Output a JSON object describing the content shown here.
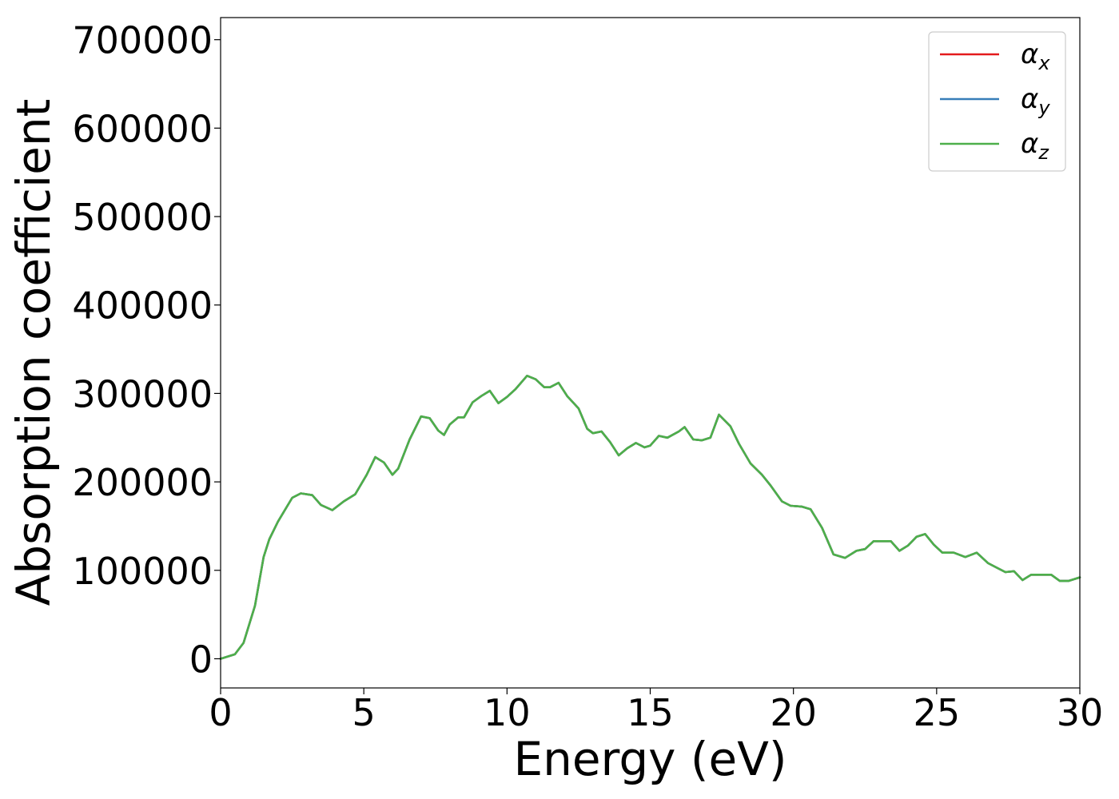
{
  "chart_data": {
    "type": "line",
    "title": "",
    "xlabel": "Energy (eV)",
    "ylabel": "Absorption coefficient",
    "xlim": [
      0,
      30
    ],
    "ylim": [
      -33000,
      725000
    ],
    "xticks": [
      0,
      5,
      10,
      15,
      20,
      25,
      30
    ],
    "xtick_labels": [
      "0",
      "5",
      "10",
      "15",
      "20",
      "25",
      "30"
    ],
    "yticks": [
      0,
      100000,
      200000,
      300000,
      400000,
      500000,
      600000,
      700000
    ],
    "ytick_labels": [
      "0",
      "100000",
      "200000",
      "300000",
      "400000",
      "500000",
      "600000",
      "700000"
    ],
    "grid": false,
    "legend_position": "top-right",
    "series": [
      {
        "name": "α",
        "subscript": "x",
        "color": "#e41a1c",
        "x": [
          0,
          0.5,
          0.8,
          1.2,
          1.5,
          1.7,
          2.0,
          2.5,
          2.8,
          3.2,
          3.5,
          3.9,
          4.3,
          4.7,
          5.1,
          5.4,
          5.7,
          6.0,
          6.2,
          6.6,
          7.0,
          7.3,
          7.6,
          7.8,
          8.0,
          8.3,
          8.5,
          8.8,
          9.1,
          9.4,
          9.7,
          10.0,
          10.3,
          10.7,
          11.0,
          11.3,
          11.5,
          11.8,
          12.1,
          12.5,
          12.8,
          13.0,
          13.3,
          13.6,
          13.9,
          14.2,
          14.5,
          14.8,
          15.0,
          15.3,
          15.6,
          16.0,
          16.2,
          16.5,
          16.8,
          17.1,
          17.4,
          17.8,
          18.1,
          18.5,
          18.9,
          19.2,
          19.6,
          19.9,
          20.3,
          20.6,
          21.0,
          21.4,
          21.8,
          22.2,
          22.5,
          22.8,
          23.1,
          23.4,
          23.7,
          24.0,
          24.3,
          24.6,
          24.9,
          25.2,
          25.6,
          26.0,
          26.4,
          26.8,
          27.1,
          27.4,
          27.7,
          28.0,
          28.3,
          28.7,
          29.0,
          29.3,
          29.6,
          30.0
        ],
        "y": [
          0,
          5000,
          18000,
          60000,
          115000,
          135000,
          155000,
          182000,
          187000,
          185000,
          174000,
          168000,
          178000,
          186000,
          208000,
          228000,
          222000,
          208000,
          215000,
          248000,
          274000,
          272000,
          258000,
          253000,
          265000,
          273000,
          273000,
          290000,
          297000,
          303000,
          289000,
          296000,
          305000,
          320000,
          316000,
          307000,
          307000,
          312000,
          297000,
          283000,
          260000,
          255000,
          257000,
          245000,
          230000,
          238000,
          244000,
          239000,
          241000,
          252000,
          250000,
          257000,
          262000,
          248000,
          247000,
          250000,
          276000,
          263000,
          243000,
          221000,
          208000,
          196000,
          178000,
          173000,
          172000,
          169000,
          148000,
          118000,
          114000,
          122000,
          124000,
          133000,
          133000,
          133000,
          122000,
          128000,
          138000,
          141000,
          129000,
          120000,
          120000,
          115000,
          120000,
          108000,
          103000,
          98000,
          99000,
          89000,
          95000,
          95000,
          95000,
          88000,
          88000,
          92000
        ]
      },
      {
        "name": "α",
        "subscript": "y",
        "color": "#377eb8",
        "x": [
          0,
          0.5,
          0.8,
          1.2,
          1.5,
          1.7,
          2.0,
          2.5,
          2.8,
          3.2,
          3.5,
          3.9,
          4.3,
          4.7,
          5.1,
          5.4,
          5.7,
          6.0,
          6.2,
          6.6,
          7.0,
          7.3,
          7.6,
          7.8,
          8.0,
          8.3,
          8.5,
          8.8,
          9.1,
          9.4,
          9.7,
          10.0,
          10.3,
          10.7,
          11.0,
          11.3,
          11.5,
          11.8,
          12.1,
          12.5,
          12.8,
          13.0,
          13.3,
          13.6,
          13.9,
          14.2,
          14.5,
          14.8,
          15.0,
          15.3,
          15.6,
          16.0,
          16.2,
          16.5,
          16.8,
          17.1,
          17.4,
          17.8,
          18.1,
          18.5,
          18.9,
          19.2,
          19.6,
          19.9,
          20.3,
          20.6,
          21.0,
          21.4,
          21.8,
          22.2,
          22.5,
          22.8,
          23.1,
          23.4,
          23.7,
          24.0,
          24.3,
          24.6,
          24.9,
          25.2,
          25.6,
          26.0,
          26.4,
          26.8,
          27.1,
          27.4,
          27.7,
          28.0,
          28.3,
          28.7,
          29.0,
          29.3,
          29.6,
          30.0
        ],
        "y": [
          0,
          5000,
          18000,
          60000,
          115000,
          135000,
          155000,
          182000,
          187000,
          185000,
          174000,
          168000,
          178000,
          186000,
          208000,
          228000,
          222000,
          208000,
          215000,
          248000,
          274000,
          272000,
          258000,
          253000,
          265000,
          273000,
          273000,
          290000,
          297000,
          303000,
          289000,
          296000,
          305000,
          320000,
          316000,
          307000,
          307000,
          312000,
          297000,
          283000,
          260000,
          255000,
          257000,
          245000,
          230000,
          238000,
          244000,
          239000,
          241000,
          252000,
          250000,
          257000,
          262000,
          248000,
          247000,
          250000,
          276000,
          263000,
          243000,
          221000,
          208000,
          196000,
          178000,
          173000,
          172000,
          169000,
          148000,
          118000,
          114000,
          122000,
          124000,
          133000,
          133000,
          133000,
          122000,
          128000,
          138000,
          141000,
          129000,
          120000,
          120000,
          115000,
          120000,
          108000,
          103000,
          98000,
          99000,
          89000,
          95000,
          95000,
          95000,
          88000,
          88000,
          92000
        ]
      },
      {
        "name": "α",
        "subscript": "z",
        "color": "#4daf4a",
        "x": [
          0,
          0.5,
          0.8,
          1.2,
          1.5,
          1.7,
          2.0,
          2.5,
          2.8,
          3.2,
          3.5,
          3.9,
          4.3,
          4.7,
          5.1,
          5.4,
          5.7,
          6.0,
          6.2,
          6.6,
          7.0,
          7.3,
          7.6,
          7.8,
          8.0,
          8.3,
          8.5,
          8.8,
          9.1,
          9.4,
          9.7,
          10.0,
          10.3,
          10.7,
          11.0,
          11.3,
          11.5,
          11.8,
          12.1,
          12.5,
          12.8,
          13.0,
          13.3,
          13.6,
          13.9,
          14.2,
          14.5,
          14.8,
          15.0,
          15.3,
          15.6,
          16.0,
          16.2,
          16.5,
          16.8,
          17.1,
          17.4,
          17.8,
          18.1,
          18.5,
          18.9,
          19.2,
          19.6,
          19.9,
          20.3,
          20.6,
          21.0,
          21.4,
          21.8,
          22.2,
          22.5,
          22.8,
          23.1,
          23.4,
          23.7,
          24.0,
          24.3,
          24.6,
          24.9,
          25.2,
          25.6,
          26.0,
          26.4,
          26.8,
          27.1,
          27.4,
          27.7,
          28.0,
          28.3,
          28.7,
          29.0,
          29.3,
          29.6,
          30.0
        ],
        "y": [
          0,
          5000,
          18000,
          60000,
          115000,
          135000,
          155000,
          182000,
          187000,
          185000,
          174000,
          168000,
          178000,
          186000,
          208000,
          228000,
          222000,
          208000,
          215000,
          248000,
          274000,
          272000,
          258000,
          253000,
          265000,
          273000,
          273000,
          290000,
          297000,
          303000,
          289000,
          296000,
          305000,
          320000,
          316000,
          307000,
          307000,
          312000,
          297000,
          283000,
          260000,
          255000,
          257000,
          245000,
          230000,
          238000,
          244000,
          239000,
          241000,
          252000,
          250000,
          257000,
          262000,
          248000,
          247000,
          250000,
          276000,
          263000,
          243000,
          221000,
          208000,
          196000,
          178000,
          173000,
          172000,
          169000,
          148000,
          118000,
          114000,
          122000,
          124000,
          133000,
          133000,
          133000,
          122000,
          128000,
          138000,
          141000,
          129000,
          120000,
          120000,
          115000,
          120000,
          108000,
          103000,
          98000,
          99000,
          89000,
          95000,
          95000,
          95000,
          88000,
          88000,
          92000
        ]
      }
    ]
  }
}
